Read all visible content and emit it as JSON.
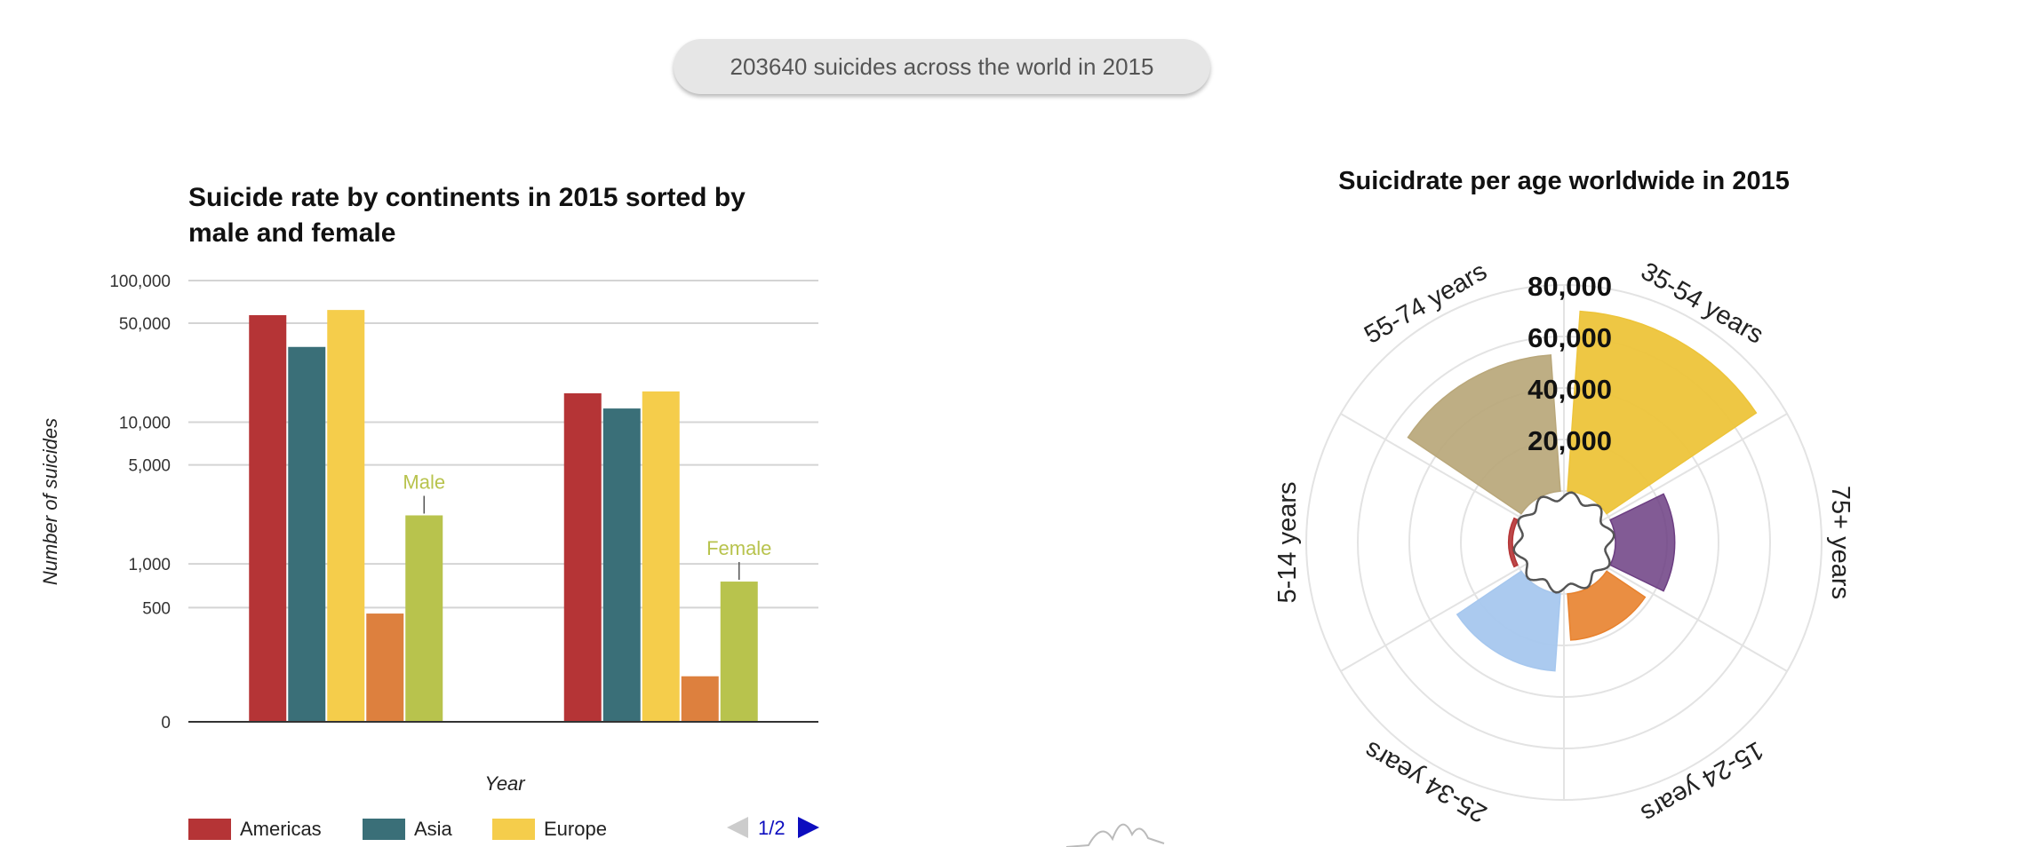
{
  "header": {
    "summary": "203640 suicides across the world in 2015"
  },
  "chart_data": [
    {
      "type": "bar",
      "title": "Suicide rate by continents in 2015 sorted by male and female",
      "xlabel": "Year",
      "ylabel": "Number of suicides",
      "scale": "log",
      "yticks": [
        "100,000",
        "50,000",
        "10,000",
        "5,000",
        "1,000",
        "500",
        "0"
      ],
      "categories": [
        "Male",
        "Female"
      ],
      "series": [
        {
          "name": "Americas",
          "color": "#b53436",
          "values": [
            57000,
            16000
          ]
        },
        {
          "name": "Asia",
          "color": "#3a6f78",
          "values": [
            34000,
            12500
          ]
        },
        {
          "name": "Europe",
          "color": "#f5cd4b",
          "values": [
            62000,
            16500
          ]
        },
        {
          "color": "#dd803e",
          "values": [
            460,
            190
          ]
        },
        {
          "color": "#b8c34d",
          "values": [
            2200,
            750
          ]
        }
      ],
      "annotations": [
        {
          "text": "Male",
          "series_index": 4,
          "category_index": 0,
          "color": "#b8c34d"
        },
        {
          "text": "Female",
          "series_index": 4,
          "category_index": 1,
          "color": "#b8c34d"
        }
      ],
      "grid": true,
      "legend": {
        "placement": "bottom-left",
        "page": "1/2"
      }
    },
    {
      "type": "polar-bar",
      "title": "Suicidrate per age worldwide in 2015",
      "rticks": [
        "20,000",
        "40,000",
        "60,000",
        "80,000"
      ],
      "rmax": 100000,
      "grid": true,
      "categories": [
        {
          "label": "35-54 years",
          "value": 70000,
          "color": "#edc43a",
          "opacity": 0.95
        },
        {
          "label": "75+ years",
          "value": 23000,
          "color": "#6c3e82",
          "opacity": 0.85
        },
        {
          "label": "15-24 years",
          "value": 18000,
          "color": "#e8822e",
          "opacity": 0.9
        },
        {
          "label": "25-34 years",
          "value": 30000,
          "color": "#a6c7ee",
          "opacity": 0.95
        },
        {
          "label": "5-14 years",
          "value": 1500,
          "color": "#b53436",
          "opacity": 0.9
        },
        {
          "label": "55-74 years",
          "value": 53000,
          "color": "#b9a77a",
          "opacity": 0.92
        }
      ]
    }
  ]
}
